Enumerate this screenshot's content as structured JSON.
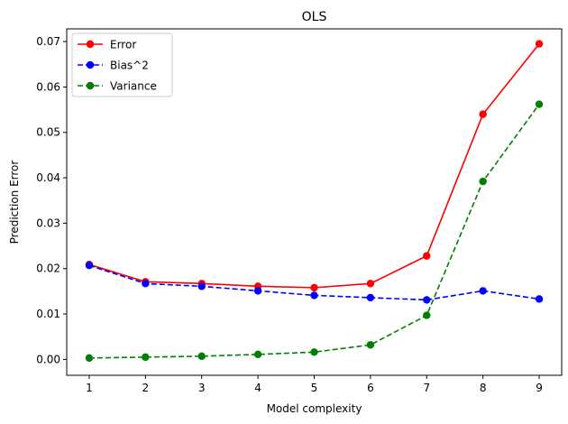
{
  "chart_data": {
    "type": "line",
    "title": "OLS",
    "xlabel": "Model complexity",
    "ylabel": "Prediction Error",
    "x": [
      1,
      2,
      3,
      4,
      5,
      6,
      7,
      8,
      9
    ],
    "xlim": [
      0.6,
      9.4
    ],
    "ylim": [
      -0.0035,
      0.0728
    ],
    "xticks": [
      "1",
      "2",
      "3",
      "4",
      "5",
      "6",
      "7",
      "8",
      "9"
    ],
    "yticks": [
      "0.00",
      "0.01",
      "0.02",
      "0.03",
      "0.04",
      "0.05",
      "0.06",
      "0.07"
    ],
    "ytick_values": [
      0.0,
      0.01,
      0.02,
      0.03,
      0.04,
      0.05,
      0.06,
      0.07
    ],
    "grid": false,
    "legend_position": "top-left",
    "series": [
      {
        "name": "Error",
        "color": "#ff0000",
        "linestyle": "solid",
        "marker": "circle",
        "values": [
          0.0209,
          0.0171,
          0.0167,
          0.0161,
          0.0158,
          0.0167,
          0.0228,
          0.054,
          0.0695
        ]
      },
      {
        "name": "Bias^2",
        "color": "#0000ff",
        "linestyle": "dashed",
        "marker": "circle",
        "values": [
          0.0207,
          0.0167,
          0.0161,
          0.0151,
          0.0141,
          0.0136,
          0.0131,
          0.0151,
          0.0133
        ]
      },
      {
        "name": "Variance",
        "color": "#008000",
        "linestyle": "dashed",
        "marker": "circle",
        "values": [
          0.0003,
          0.0005,
          0.0007,
          0.0011,
          0.0016,
          0.0032,
          0.0097,
          0.0392,
          0.0562
        ]
      }
    ]
  }
}
